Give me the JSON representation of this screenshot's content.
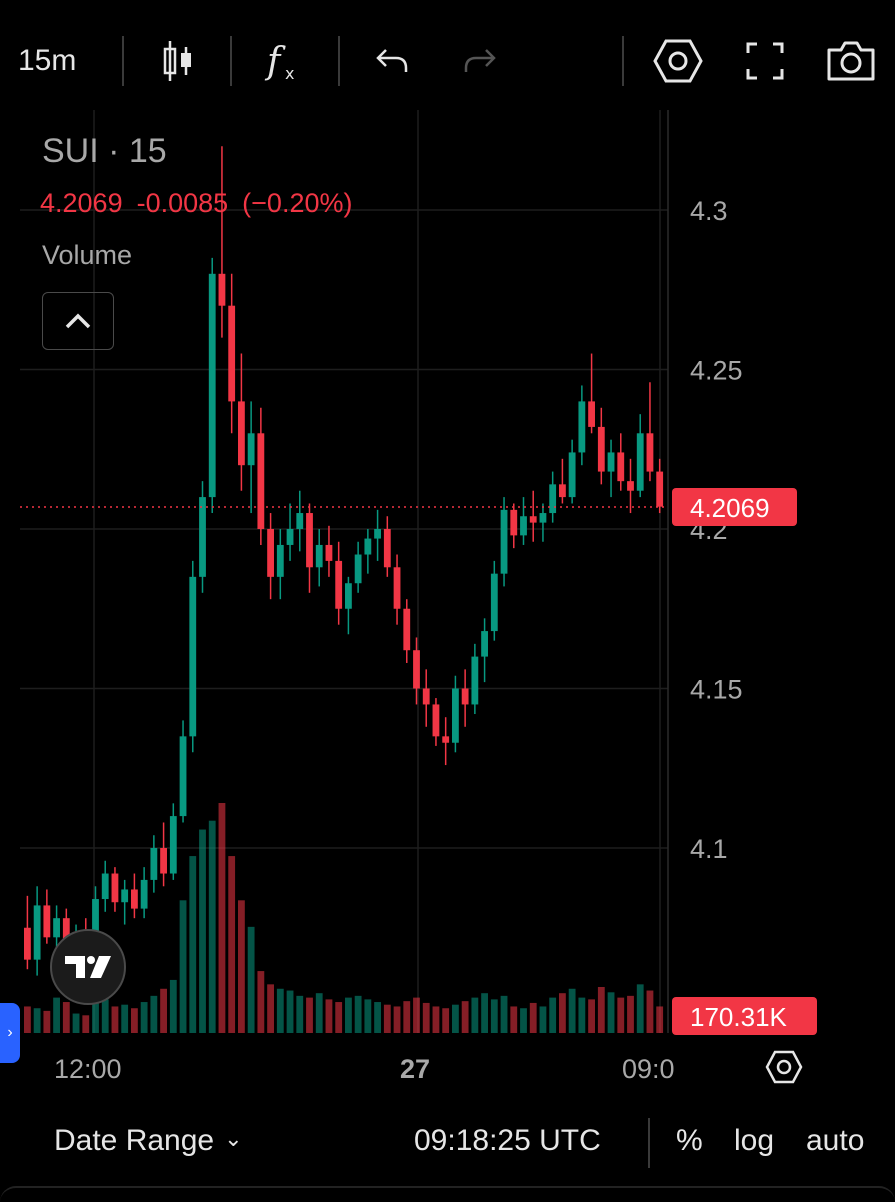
{
  "toolbar": {
    "interval": "15m",
    "icons": [
      "candles-icon",
      "indicators-icon",
      "undo-icon",
      "redo-icon",
      "settings-icon",
      "fullscreen-icon",
      "camera-icon"
    ]
  },
  "legend": {
    "symbol": "SUI · 15",
    "last_price": "4.2069",
    "change": "-0.0085",
    "change_pct": "(−0.20%)",
    "volume_label": "Volume"
  },
  "price_axis": {
    "ticks": [
      "4.3",
      "4.25",
      "4.2",
      "4.15",
      "4.1"
    ],
    "current_price_label": "4.2069",
    "volume_label": "170.31K"
  },
  "time_axis": {
    "ticks": [
      "12:00",
      "27",
      "09:0"
    ]
  },
  "footer": {
    "date_range": "Date Range",
    "time": "09:18:25 UTC",
    "percent": "%",
    "log": "log",
    "auto": "auto"
  },
  "colors": {
    "up": "#089981",
    "down": "#f23645",
    "background": "#000000",
    "grid": "#1e1e1e"
  },
  "chart_data": {
    "type": "candlestick",
    "symbol": "SUI",
    "interval": "15",
    "ylim": [
      4.065,
      4.33
    ],
    "y_ticks": [
      4.3,
      4.25,
      4.2,
      4.15,
      4.1
    ],
    "last_price": 4.2069,
    "ohlc": [
      [
        4.075,
        4.085,
        4.062,
        4.065
      ],
      [
        4.065,
        4.088,
        4.06,
        4.082
      ],
      [
        4.082,
        4.087,
        4.07,
        4.072
      ],
      [
        4.072,
        4.082,
        4.065,
        4.078
      ],
      [
        4.078,
        4.081,
        4.062,
        4.066
      ],
      [
        4.066,
        4.076,
        4.06,
        4.072
      ],
      [
        4.072,
        4.078,
        4.065,
        4.069
      ],
      [
        4.069,
        4.088,
        4.066,
        4.084
      ],
      [
        4.084,
        4.096,
        4.08,
        4.092
      ],
      [
        4.092,
        4.094,
        4.08,
        4.083
      ],
      [
        4.083,
        4.09,
        4.076,
        4.087
      ],
      [
        4.087,
        4.092,
        4.078,
        4.081
      ],
      [
        4.081,
        4.094,
        4.078,
        4.09
      ],
      [
        4.09,
        4.104,
        4.086,
        4.1
      ],
      [
        4.1,
        4.108,
        4.088,
        4.092
      ],
      [
        4.092,
        4.114,
        4.09,
        4.11
      ],
      [
        4.11,
        4.14,
        4.108,
        4.135
      ],
      [
        4.135,
        4.19,
        4.13,
        4.185
      ],
      [
        4.185,
        4.215,
        4.18,
        4.21
      ],
      [
        4.21,
        4.285,
        4.205,
        4.28
      ],
      [
        4.28,
        4.32,
        4.26,
        4.27
      ],
      [
        4.27,
        4.28,
        4.23,
        4.24
      ],
      [
        4.24,
        4.255,
        4.212,
        4.22
      ],
      [
        4.22,
        4.24,
        4.205,
        4.23
      ],
      [
        4.23,
        4.238,
        4.195,
        4.2
      ],
      [
        4.2,
        4.205,
        4.178,
        4.185
      ],
      [
        4.185,
        4.2,
        4.178,
        4.195
      ],
      [
        4.195,
        4.208,
        4.19,
        4.2
      ],
      [
        4.2,
        4.212,
        4.193,
        4.205
      ],
      [
        4.205,
        4.208,
        4.18,
        4.188
      ],
      [
        4.188,
        4.2,
        4.182,
        4.195
      ],
      [
        4.195,
        4.201,
        4.185,
        4.19
      ],
      [
        4.19,
        4.196,
        4.17,
        4.175
      ],
      [
        4.175,
        4.185,
        4.167,
        4.183
      ],
      [
        4.183,
        4.196,
        4.18,
        4.192
      ],
      [
        4.192,
        4.2,
        4.186,
        4.197
      ],
      [
        4.197,
        4.206,
        4.19,
        4.2
      ],
      [
        4.2,
        4.204,
        4.185,
        4.188
      ],
      [
        4.188,
        4.192,
        4.17,
        4.175
      ],
      [
        4.175,
        4.178,
        4.158,
        4.162
      ],
      [
        4.162,
        4.166,
        4.145,
        4.15
      ],
      [
        4.15,
        4.156,
        4.138,
        4.145
      ],
      [
        4.145,
        4.147,
        4.132,
        4.135
      ],
      [
        4.135,
        4.141,
        4.126,
        4.133
      ],
      [
        4.133,
        4.154,
        4.13,
        4.15
      ],
      [
        4.15,
        4.156,
        4.138,
        4.145
      ],
      [
        4.145,
        4.164,
        4.142,
        4.16
      ],
      [
        4.16,
        4.172,
        4.152,
        4.168
      ],
      [
        4.168,
        4.19,
        4.165,
        4.186
      ],
      [
        4.186,
        4.21,
        4.182,
        4.206
      ],
      [
        4.206,
        4.208,
        4.194,
        4.198
      ],
      [
        4.198,
        4.21,
        4.195,
        4.204
      ],
      [
        4.204,
        4.212,
        4.196,
        4.202
      ],
      [
        4.202,
        4.208,
        4.196,
        4.205
      ],
      [
        4.205,
        4.218,
        4.202,
        4.214
      ],
      [
        4.214,
        4.222,
        4.208,
        4.21
      ],
      [
        4.21,
        4.228,
        4.208,
        4.224
      ],
      [
        4.224,
        4.245,
        4.22,
        4.24
      ],
      [
        4.24,
        4.255,
        4.23,
        4.232
      ],
      [
        4.232,
        4.238,
        4.214,
        4.218
      ],
      [
        4.218,
        4.228,
        4.21,
        4.224
      ],
      [
        4.224,
        4.23,
        4.212,
        4.215
      ],
      [
        4.215,
        4.222,
        4.205,
        4.212
      ],
      [
        4.212,
        4.236,
        4.21,
        4.23
      ],
      [
        4.23,
        4.246,
        4.215,
        4.218
      ],
      [
        4.218,
        4.222,
        4.205,
        4.207
      ]
    ],
    "volume": [
      30,
      28,
      25,
      40,
      35,
      22,
      20,
      45,
      38,
      30,
      32,
      28,
      35,
      42,
      50,
      60,
      150,
      200,
      230,
      240,
      260,
      200,
      150,
      120,
      70,
      55,
      50,
      48,
      42,
      40,
      45,
      38,
      35,
      40,
      42,
      38,
      35,
      32,
      30,
      36,
      40,
      34,
      30,
      28,
      32,
      36,
      40,
      45,
      38,
      42,
      30,
      28,
      34,
      30,
      40,
      45,
      50,
      40,
      38,
      52,
      46,
      40,
      42,
      55,
      48,
      30
    ],
    "volume_max": 260
  }
}
